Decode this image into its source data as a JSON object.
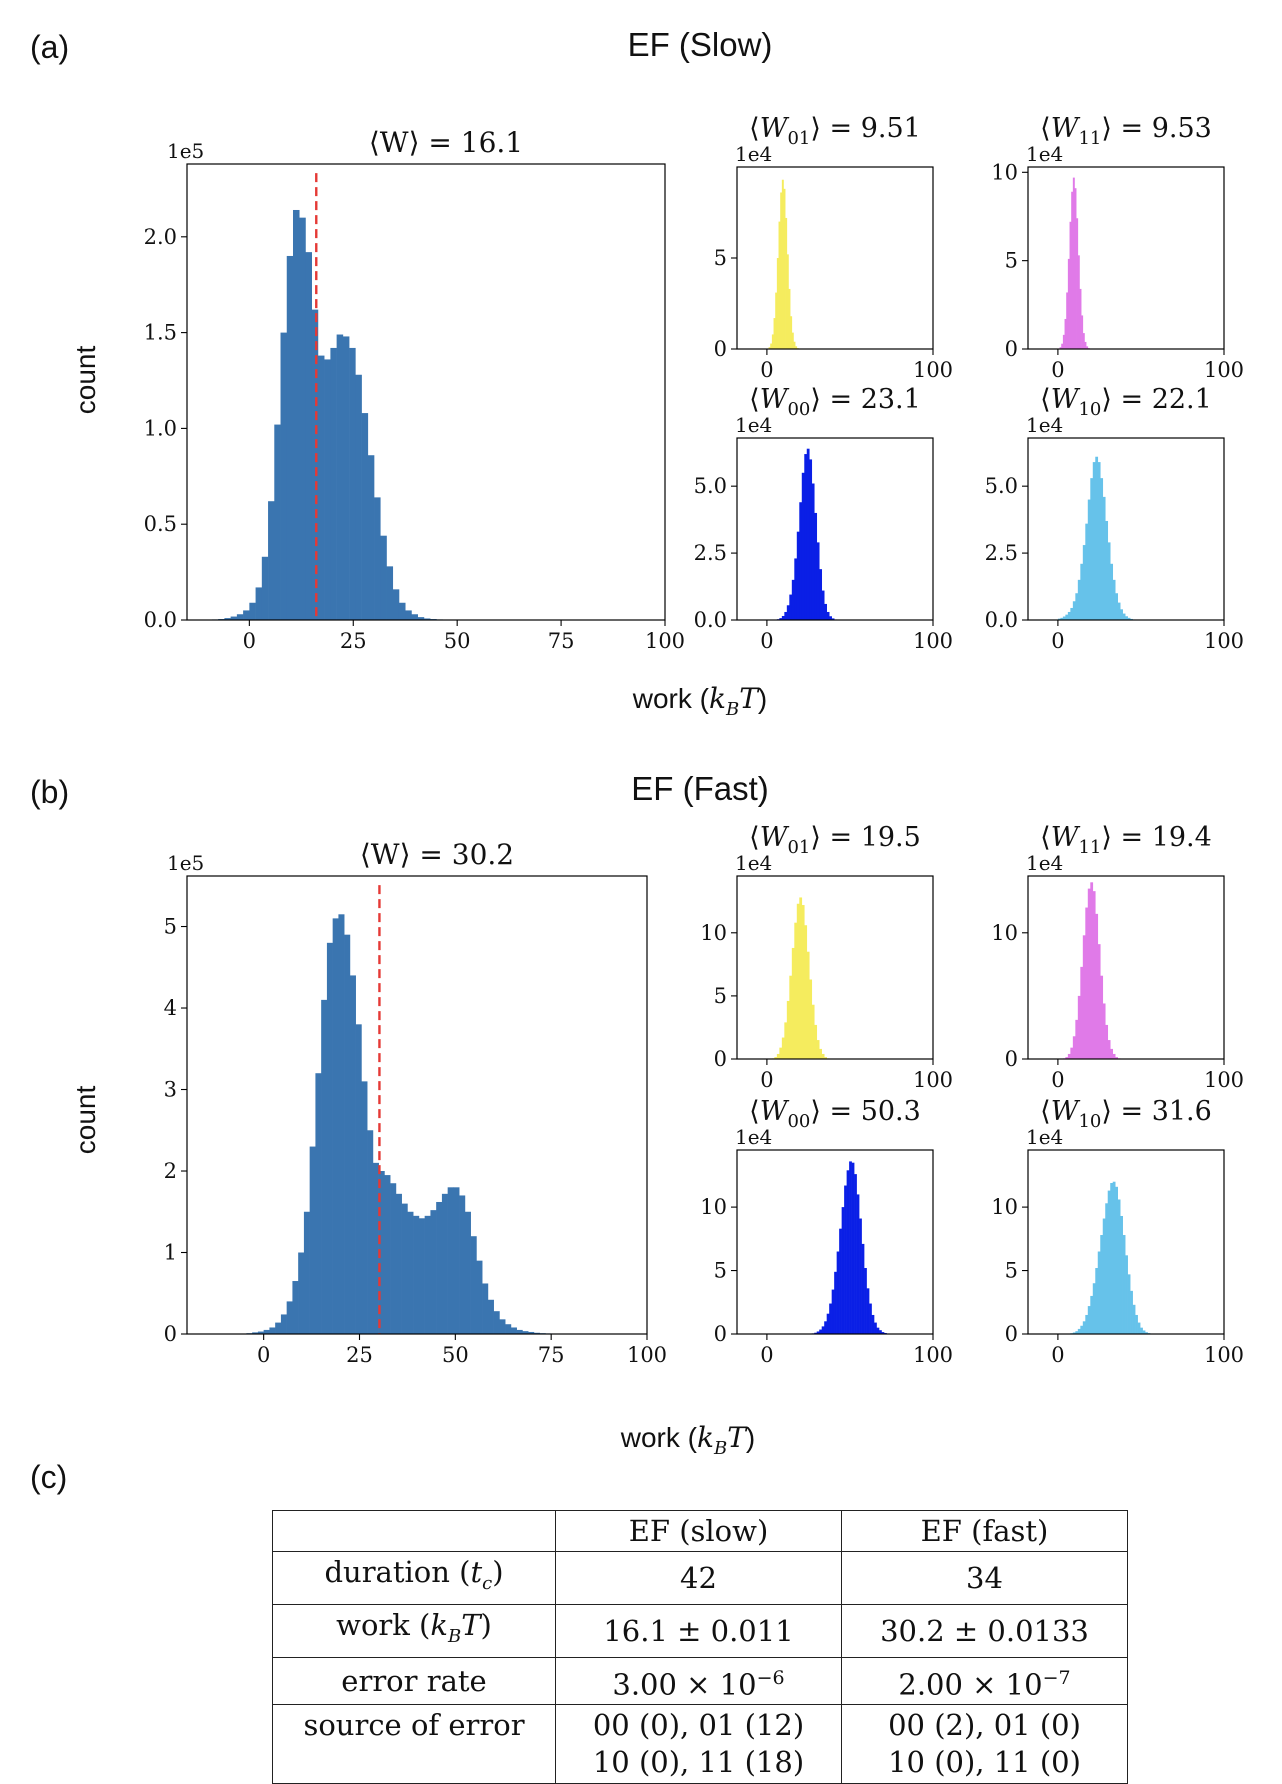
{
  "panels": [
    {
      "label": "(a)",
      "title": "EF (Slow)",
      "ylabel": "count",
      "xlabel": "work (k_B T)",
      "main": {
        "title": "⟨W⟩ = 16.1",
        "multiplier": "1e5",
        "ylim": [
          0,
          2.38
        ],
        "yticks": [
          "0.0",
          "0.5",
          "1.0",
          "1.5",
          "2.0"
        ],
        "yvals": [
          0,
          0.5,
          1.0,
          1.5,
          2.0
        ],
        "xlim": [
          -15,
          100
        ],
        "xticks": [
          0,
          25,
          50,
          75,
          100
        ],
        "mean": 16.1,
        "color": "#3a75b0"
      },
      "subs": [
        {
          "title": "⟨W01⟩ = 9.51",
          "sym": "W",
          "sub": "01",
          "val": "9.51",
          "multiplier": "1e4",
          "ylim": [
            0,
            10
          ],
          "yticks": [
            0,
            5
          ],
          "xticks": [
            0,
            100
          ],
          "xlim": [
            -18,
            100
          ],
          "color": "#f5ec5e"
        },
        {
          "title": "⟨W11⟩ = 9.53",
          "sym": "W",
          "sub": "11",
          "val": "9.53",
          "multiplier": "1e4",
          "ylim": [
            0,
            10.3
          ],
          "yticks": [
            0,
            5,
            10
          ],
          "xticks": [
            0,
            100
          ],
          "xlim": [
            -18,
            100
          ],
          "color": "#e07ae8"
        },
        {
          "title": "⟨W00⟩ = 23.1",
          "sym": "W",
          "sub": "00",
          "val": "23.1",
          "multiplier": "1e4",
          "ylim": [
            0,
            6.8
          ],
          "yticks": [
            "0.0",
            "2.5",
            "5.0"
          ],
          "yvals": [
            0,
            2.5,
            5.0
          ],
          "xticks": [
            0,
            100
          ],
          "xlim": [
            -18,
            100
          ],
          "color": "#0a1fe6"
        },
        {
          "title": "⟨W10⟩ = 22.1",
          "sym": "W",
          "sub": "10",
          "val": "22.1",
          "multiplier": "1e4",
          "ylim": [
            0,
            6.8
          ],
          "yticks": [
            "0.0",
            "2.5",
            "5.0"
          ],
          "yvals": [
            0,
            2.5,
            5.0
          ],
          "xticks": [
            0,
            100
          ],
          "xlim": [
            -18,
            100
          ],
          "color": "#66c2ea"
        }
      ]
    },
    {
      "label": "(b)",
      "title": "EF (Fast)",
      "ylabel": "count",
      "xlabel": "work (k_B T)",
      "main": {
        "title": "⟨W⟩ = 30.2",
        "multiplier": "1e5",
        "ylim": [
          0,
          5.62
        ],
        "yticks": [
          "0",
          "1",
          "2",
          "3",
          "4",
          "5"
        ],
        "yvals": [
          0,
          1,
          2,
          3,
          4,
          5
        ],
        "xlim": [
          -20,
          100
        ],
        "xticks": [
          0,
          25,
          50,
          75,
          100
        ],
        "mean": 30.2,
        "color": "#3a75b0"
      },
      "subs": [
        {
          "title": "⟨W01⟩ = 19.5",
          "sym": "W",
          "sub": "01",
          "val": "19.5",
          "multiplier": "1e4",
          "ylim": [
            0,
            14.5
          ],
          "yticks": [
            0,
            5,
            10
          ],
          "xticks": [
            0,
            100
          ],
          "xlim": [
            -18,
            100
          ],
          "color": "#f5ec5e"
        },
        {
          "title": "⟨W11⟩ = 19.4",
          "sym": "W",
          "sub": "11",
          "val": "19.4",
          "multiplier": "1e4",
          "ylim": [
            0,
            14.5
          ],
          "yticks": [
            0,
            10
          ],
          "xticks": [
            0,
            100
          ],
          "xlim": [
            -18,
            100
          ],
          "color": "#e07ae8"
        },
        {
          "title": "⟨W00⟩ = 50.3",
          "sym": "W",
          "sub": "00",
          "val": "50.3",
          "multiplier": "1e4",
          "ylim": [
            0,
            14.5
          ],
          "yticks": [
            0,
            5,
            10
          ],
          "xticks": [
            0,
            100
          ],
          "xlim": [
            -18,
            100
          ],
          "color": "#0a1fe6"
        },
        {
          "title": "⟨W10⟩ = 31.6",
          "sym": "W",
          "sub": "10",
          "val": "31.6",
          "multiplier": "1e4",
          "ylim": [
            0,
            14.5
          ],
          "yticks": [
            0,
            5,
            10
          ],
          "xticks": [
            0,
            100
          ],
          "xlim": [
            -18,
            100
          ],
          "color": "#66c2ea"
        }
      ]
    }
  ],
  "table_label": "(c)",
  "table": {
    "header": [
      "",
      "EF (slow)",
      "EF (fast)"
    ],
    "rows": [
      [
        "duration (t_c)",
        "42",
        "34"
      ],
      [
        "work (k_B T)",
        "16.1 ± 0.011",
        "30.2 ± 0.0133"
      ],
      [
        "error rate",
        "3.00 × 10^-6",
        "2.00 × 10^-7"
      ],
      [
        "source of error",
        "00 (0), 01 (12) 10 (0), 11 (18)",
        "00 (2), 01 (0) 10 (0), 11 (0)"
      ]
    ]
  },
  "chart_data": [
    {
      "type": "bar",
      "panel": "a",
      "title": "⟨W⟩ = 16.1",
      "xlabel": "work (k_B T)",
      "ylabel": "count",
      "ylabel_multiplier": "1e5",
      "xlim": [
        -15,
        100
      ],
      "ylim": [
        0,
        2.38
      ],
      "mean_line": 16.1,
      "bin_width": 1.5,
      "x": [
        -9,
        -7.5,
        -6,
        -4.5,
        -3,
        -1.5,
        0,
        1.5,
        3,
        4.5,
        6,
        7.5,
        9,
        10.5,
        12,
        13.5,
        15,
        16.5,
        18,
        19.5,
        21,
        22.5,
        24,
        25.5,
        27,
        28.5,
        30,
        31.5,
        33,
        34.5,
        36,
        37.5,
        39,
        40.5,
        42,
        43.5,
        45,
        46.5,
        48,
        49.5
      ],
      "values": [
        0.003,
        0.005,
        0.01,
        0.018,
        0.03,
        0.05,
        0.09,
        0.17,
        0.33,
        0.62,
        1.02,
        1.5,
        1.9,
        2.14,
        2.1,
        1.92,
        1.62,
        1.38,
        1.36,
        1.42,
        1.49,
        1.48,
        1.42,
        1.28,
        1.08,
        0.86,
        0.64,
        0.44,
        0.28,
        0.16,
        0.09,
        0.05,
        0.03,
        0.015,
        0.008,
        0.005,
        0.003,
        0.002,
        0.001,
        0.001
      ]
    },
    {
      "type": "bar",
      "panel": "a",
      "title": "⟨W01⟩ = 9.51",
      "ylabel_multiplier": "1e4",
      "xlim": [
        -18,
        100
      ],
      "ylim": [
        0,
        10
      ],
      "bin_width": 1,
      "x": [
        1,
        2,
        3,
        4,
        5,
        6,
        7,
        8,
        9,
        10,
        11,
        12,
        13,
        14,
        15,
        16,
        17,
        18
      ],
      "values": [
        0.1,
        0.3,
        0.8,
        1.7,
        3.1,
        5.0,
        7.0,
        8.6,
        9.3,
        8.8,
        7.2,
        5.2,
        3.3,
        1.8,
        0.9,
        0.4,
        0.15,
        0.05
      ]
    },
    {
      "type": "bar",
      "panel": "a",
      "title": "⟨W11⟩ = 9.53",
      "ylabel_multiplier": "1e4",
      "xlim": [
        -18,
        100
      ],
      "ylim": [
        0,
        10.3
      ],
      "bin_width": 1,
      "x": [
        1,
        2,
        3,
        4,
        5,
        6,
        7,
        8,
        9,
        10,
        11,
        12,
        13,
        14,
        15,
        16,
        17,
        18
      ],
      "values": [
        0.1,
        0.3,
        0.8,
        1.7,
        3.2,
        5.1,
        7.2,
        8.9,
        9.7,
        9.1,
        7.4,
        5.3,
        3.4,
        1.9,
        0.9,
        0.4,
        0.15,
        0.05
      ]
    },
    {
      "type": "bar",
      "panel": "a",
      "title": "⟨W00⟩ = 23.1",
      "ylabel_multiplier": "1e4",
      "xlim": [
        -18,
        100
      ],
      "ylim": [
        0,
        6.8
      ],
      "bin_width": 1.5,
      "x": [
        6,
        7.5,
        9,
        10.5,
        12,
        13.5,
        15,
        16.5,
        18,
        19.5,
        21,
        22.5,
        24,
        25.5,
        27,
        28.5,
        30,
        31.5,
        33,
        34.5,
        36,
        37.5,
        39,
        40.5
      ],
      "values": [
        0.03,
        0.07,
        0.15,
        0.3,
        0.55,
        0.95,
        1.5,
        2.3,
        3.3,
        4.4,
        5.5,
        6.2,
        6.4,
        6.0,
        5.1,
        4.0,
        2.9,
        1.9,
        1.1,
        0.6,
        0.3,
        0.14,
        0.06,
        0.02
      ]
    },
    {
      "type": "bar",
      "panel": "a",
      "title": "⟨W10⟩ = 22.1",
      "ylabel_multiplier": "1e4",
      "xlim": [
        -18,
        100
      ],
      "ylim": [
        0,
        6.8
      ],
      "bin_width": 1.5,
      "x": [
        0,
        1.5,
        3,
        4.5,
        6,
        7.5,
        9,
        10.5,
        12,
        13.5,
        15,
        16.5,
        18,
        19.5,
        21,
        22.5,
        24,
        25.5,
        27,
        28.5,
        30,
        31.5,
        33,
        34.5,
        36,
        37.5,
        39,
        40.5,
        42,
        43.5,
        45
      ],
      "values": [
        0.05,
        0.08,
        0.13,
        0.2,
        0.3,
        0.45,
        0.7,
        1.0,
        1.5,
        2.1,
        2.8,
        3.6,
        4.5,
        5.3,
        5.9,
        6.1,
        5.9,
        5.3,
        4.6,
        3.7,
        2.9,
        2.1,
        1.5,
        1.0,
        0.65,
        0.4,
        0.24,
        0.14,
        0.08,
        0.04,
        0.02
      ]
    },
    {
      "type": "bar",
      "panel": "b",
      "title": "⟨W⟩ = 30.2",
      "xlabel": "work (k_B T)",
      "ylabel": "count",
      "ylabel_multiplier": "1e5",
      "xlim": [
        -20,
        100
      ],
      "ylim": [
        0,
        5.62
      ],
      "mean_line": 30.2,
      "bin_width": 1.5,
      "x": [
        -6,
        -4.5,
        -3,
        -1.5,
        0,
        1.5,
        3,
        4.5,
        6,
        7.5,
        9,
        10.5,
        12,
        13.5,
        15,
        16.5,
        18,
        19.5,
        21,
        22.5,
        24,
        25.5,
        27,
        28.5,
        30,
        31.5,
        33,
        34.5,
        36,
        37.5,
        39,
        40.5,
        42,
        43.5,
        45,
        46.5,
        48,
        49.5,
        51,
        52.5,
        54,
        55.5,
        57,
        58.5,
        60,
        61.5,
        63,
        64.5,
        66,
        67.5,
        69,
        70.5,
        72,
        73.5,
        75,
        76.5,
        78
      ],
      "values": [
        0.005,
        0.01,
        0.02,
        0.03,
        0.05,
        0.08,
        0.14,
        0.24,
        0.4,
        0.65,
        1.0,
        1.5,
        2.3,
        3.2,
        4.1,
        4.8,
        5.1,
        5.15,
        4.9,
        4.4,
        3.8,
        3.1,
        2.5,
        2.1,
        2.0,
        1.95,
        1.85,
        1.72,
        1.6,
        1.5,
        1.45,
        1.42,
        1.45,
        1.52,
        1.62,
        1.72,
        1.8,
        1.8,
        1.7,
        1.5,
        1.2,
        0.9,
        0.62,
        0.42,
        0.28,
        0.18,
        0.12,
        0.08,
        0.05,
        0.035,
        0.025,
        0.015,
        0.01,
        0.007,
        0.005,
        0.003,
        0.002
      ]
    },
    {
      "type": "bar",
      "panel": "b",
      "title": "⟨W01⟩ = 19.5",
      "ylabel_multiplier": "1e4",
      "xlim": [
        -18,
        100
      ],
      "ylim": [
        0,
        14.5
      ],
      "bin_width": 1.5,
      "x": [
        3,
        4.5,
        6,
        7.5,
        9,
        10.5,
        12,
        13.5,
        15,
        16.5,
        18,
        19.5,
        21,
        22.5,
        24,
        25.5,
        27,
        28.5,
        30,
        31.5,
        33,
        34.5,
        36
      ],
      "values": [
        0.05,
        0.15,
        0.4,
        0.9,
        1.7,
        2.9,
        4.6,
        6.6,
        8.8,
        10.8,
        12.3,
        12.8,
        12.2,
        10.6,
        8.5,
        6.3,
        4.3,
        2.7,
        1.5,
        0.8,
        0.4,
        0.15,
        0.05
      ]
    },
    {
      "type": "bar",
      "panel": "b",
      "title": "⟨W11⟩ = 19.4",
      "ylabel_multiplier": "1e4",
      "xlim": [
        -18,
        100
      ],
      "ylim": [
        0,
        14.5
      ],
      "bin_width": 1.5,
      "x": [
        3,
        4.5,
        6,
        7.5,
        9,
        10.5,
        12,
        13.5,
        15,
        16.5,
        18,
        19.5,
        21,
        22.5,
        24,
        25.5,
        27,
        28.5,
        30,
        31.5,
        33,
        34.5,
        36
      ],
      "values": [
        0.05,
        0.15,
        0.4,
        0.9,
        1.8,
        3.1,
        5.0,
        7.3,
        9.8,
        12.0,
        13.5,
        14.0,
        13.3,
        11.5,
        9.1,
        6.6,
        4.4,
        2.7,
        1.5,
        0.8,
        0.4,
        0.15,
        0.05
      ]
    },
    {
      "type": "bar",
      "panel": "b",
      "title": "⟨W00⟩ = 50.3",
      "ylabel_multiplier": "1e4",
      "xlim": [
        -18,
        100
      ],
      "ylim": [
        0,
        14.5
      ],
      "bin_width": 1.5,
      "x": [
        27,
        28.5,
        30,
        31.5,
        33,
        34.5,
        36,
        37.5,
        39,
        40.5,
        42,
        43.5,
        45,
        46.5,
        48,
        49.5,
        51,
        52.5,
        54,
        55.5,
        57,
        58.5,
        60,
        61.5,
        63,
        64.5,
        66,
        67.5,
        69,
        70.5,
        72,
        73.5,
        75,
        76.5,
        78
      ],
      "values": [
        0.05,
        0.1,
        0.2,
        0.35,
        0.6,
        1.0,
        1.6,
        2.4,
        3.5,
        4.9,
        6.5,
        8.3,
        10.0,
        11.7,
        12.9,
        13.6,
        13.5,
        12.6,
        11.0,
        9.1,
        7.1,
        5.2,
        3.6,
        2.4,
        1.5,
        0.9,
        0.5,
        0.3,
        0.15,
        0.08,
        0.04,
        0.02,
        0.01,
        0.01,
        0.005
      ]
    },
    {
      "type": "bar",
      "panel": "b",
      "title": "⟨W10⟩ = 31.6",
      "ylabel_multiplier": "1e4",
      "xlim": [
        -18,
        100
      ],
      "ylim": [
        0,
        14.5
      ],
      "bin_width": 1.5,
      "x": [
        6,
        7.5,
        9,
        10.5,
        12,
        13.5,
        15,
        16.5,
        18,
        19.5,
        21,
        22.5,
        24,
        25.5,
        27,
        28.5,
        30,
        31.5,
        33,
        34.5,
        36,
        37.5,
        39,
        40.5,
        42,
        43.5,
        45,
        46.5,
        48,
        49.5,
        51,
        52.5,
        54,
        55.5,
        57
      ],
      "values": [
        0.03,
        0.06,
        0.12,
        0.22,
        0.4,
        0.65,
        1.0,
        1.5,
        2.2,
        3.0,
        4.0,
        5.2,
        6.5,
        7.8,
        9.1,
        10.3,
        11.3,
        11.9,
        12.0,
        11.6,
        10.6,
        9.3,
        7.8,
        6.2,
        4.7,
        3.4,
        2.3,
        1.5,
        0.9,
        0.5,
        0.28,
        0.14,
        0.07,
        0.03,
        0.01
      ]
    }
  ]
}
